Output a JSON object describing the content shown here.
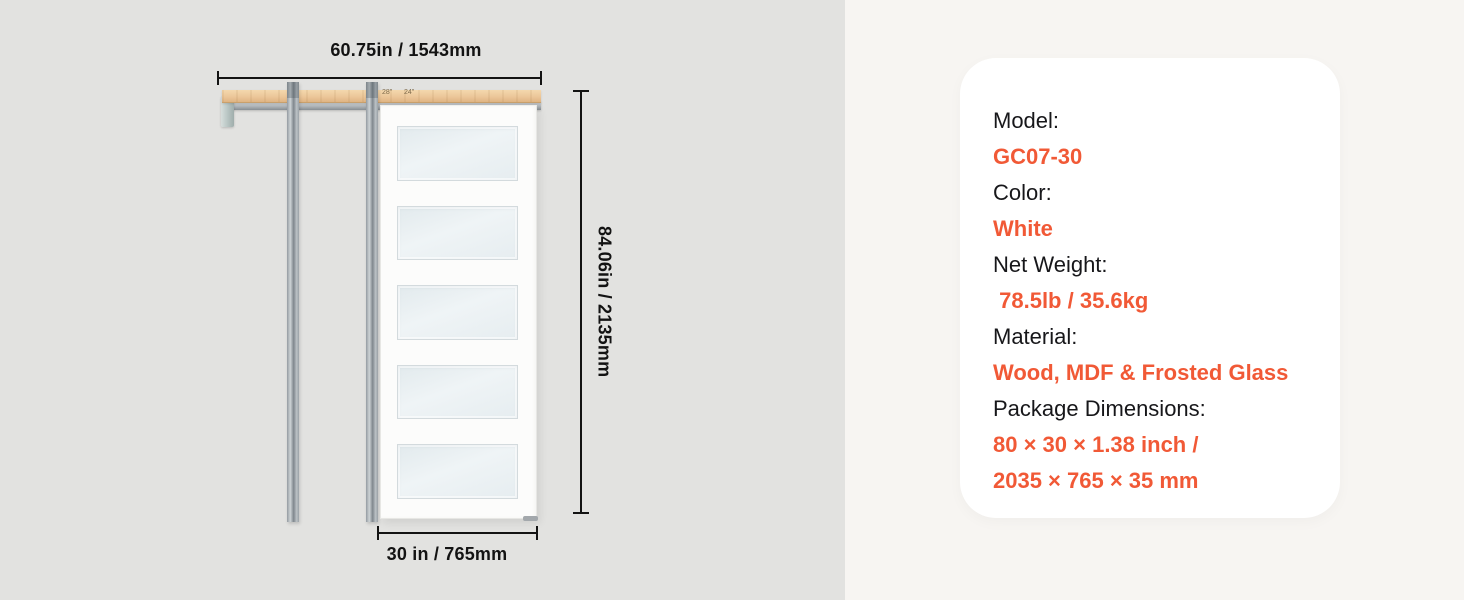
{
  "colors": {
    "accent": "#f15936",
    "left_background": "#e2e2e0",
    "right_background": "#f7f5f2",
    "card_background": "#ffffff",
    "wood": "#ecc79a"
  },
  "diagram": {
    "track_width_label": "60.75in / 1543mm",
    "door_height_label": "84.06in / 2135mm",
    "door_width_label": "30 in / 765mm",
    "track_mark_1": "28\"",
    "track_mark_2": "24\"",
    "glass_panel_count": 5
  },
  "spec_card": {
    "rows": [
      {
        "kind": "label",
        "text": "Model:"
      },
      {
        "kind": "value",
        "text": "GC07-30"
      },
      {
        "kind": "label",
        "text": "Color:"
      },
      {
        "kind": "value",
        "text": "White"
      },
      {
        "kind": "label",
        "text": "Net Weight:"
      },
      {
        "kind": "value",
        "text": " 78.5lb / 35.6kg"
      },
      {
        "kind": "label",
        "text": "Material:"
      },
      {
        "kind": "value",
        "text": "Wood, MDF & Frosted Glass"
      },
      {
        "kind": "label",
        "text": "Package Dimensions:"
      },
      {
        "kind": "value",
        "text": "80 × 30 × 1.38 inch /"
      },
      {
        "kind": "value",
        "text": "2035 × 765 × 35 mm"
      }
    ]
  }
}
